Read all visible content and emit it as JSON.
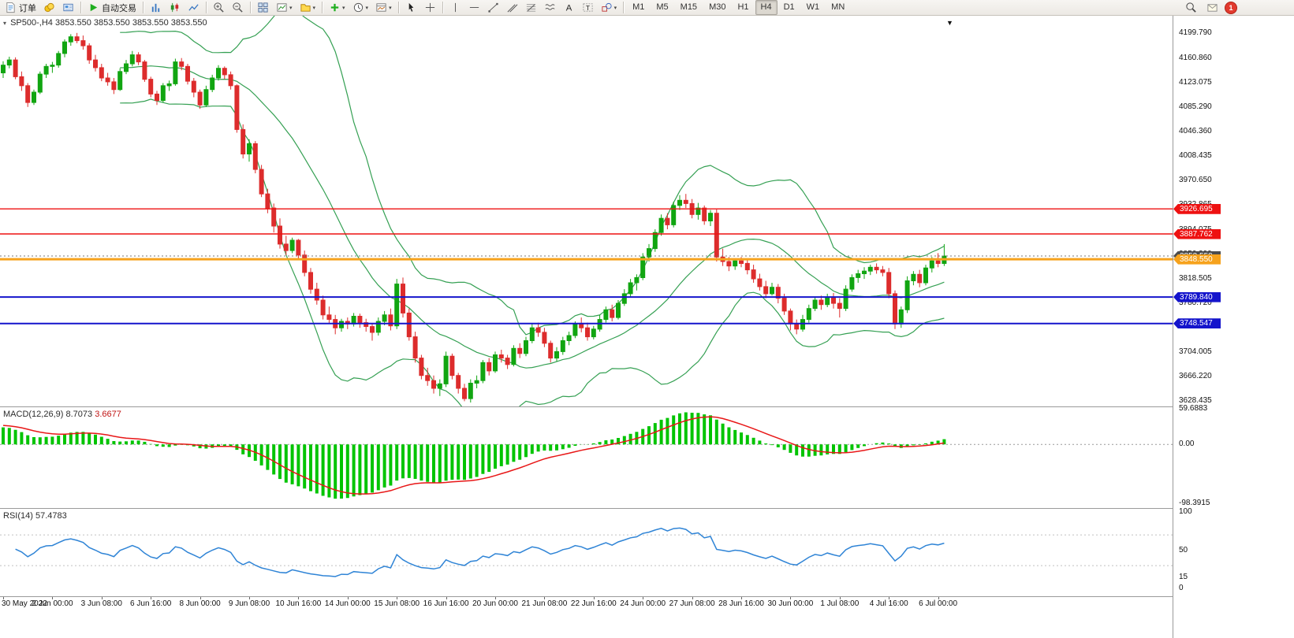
{
  "toolbar": {
    "new_order_label": "订单",
    "auto_trading_label": "自动交易",
    "timeframes": [
      "M1",
      "M5",
      "M15",
      "M30",
      "H1",
      "H4",
      "D1",
      "W1",
      "MN"
    ],
    "active_timeframe": "H4",
    "notification_count": "1"
  },
  "chart_data": {
    "type": "candlestick",
    "symbol_timeframe": "SP500-,H4",
    "ohlc_readout": "3853.550 3853.550 3853.550 3853.550",
    "candle_spacing": 7.8,
    "colors": {
      "up": "#11a511",
      "down": "#dd2c2c",
      "bollinger": "#35a053",
      "macd_hist": "#00c400",
      "macd_signal": "#e81717",
      "rsi": "#2f84d6"
    },
    "y_axis": {
      "top_price": 4226.65,
      "bottom_price": 3619.9,
      "labels": [
        "4199.790",
        "4160.860",
        "4123.075",
        "4085.290",
        "4046.360",
        "4008.435",
        "3970.650",
        "3932.865",
        "3894.075",
        "3856.290",
        "3818.505",
        "3780.720",
        "3742.935",
        "3704.005",
        "3666.220",
        "3628.435"
      ]
    },
    "hlines": [
      {
        "price": 3926.695,
        "label": "3926.695",
        "color": "#ee1111",
        "width": 1.4
      },
      {
        "price": 3887.762,
        "label": "3887.762",
        "color": "#ee1111",
        "width": 1.4
      },
      {
        "price": 3848.55,
        "label": "3848.550",
        "color": "#f6a21c",
        "width": 3
      },
      {
        "price": 3789.84,
        "label": "3789.840",
        "color": "#1414cc",
        "width": 2
      },
      {
        "price": 3748.547,
        "label": "3748.547",
        "color": "#1414cc",
        "width": 2
      }
    ],
    "current_price": {
      "price": 3853.55,
      "label": "3853.550",
      "color": "#4d4d4d"
    },
    "x_labels": [
      {
        "i": 0,
        "t": "30 May 2022"
      },
      {
        "i": 8,
        "t": "2 Jun 00:00"
      },
      {
        "i": 16,
        "t": "3 Jun 08:00"
      },
      {
        "i": 24,
        "t": "6 Jun 16:00"
      },
      {
        "i": 32,
        "t": "8 Jun 00:00"
      },
      {
        "i": 40,
        "t": "9 Jun 08:00"
      },
      {
        "i": 48,
        "t": "10 Jun 16:00"
      },
      {
        "i": 56,
        "t": "14 Jun 00:00"
      },
      {
        "i": 64,
        "t": "15 Jun 08:00"
      },
      {
        "i": 72,
        "t": "16 Jun 16:00"
      },
      {
        "i": 80,
        "t": "20 Jun 00:00"
      },
      {
        "i": 88,
        "t": "21 Jun 08:00"
      },
      {
        "i": 96,
        "t": "22 Jun 16:00"
      },
      {
        "i": 104,
        "t": "24 Jun 00:00"
      },
      {
        "i": 112,
        "t": "27 Jun 08:00"
      },
      {
        "i": 120,
        "t": "28 Jun 16:00"
      },
      {
        "i": 128,
        "t": "30 Jun 00:00"
      },
      {
        "i": 136,
        "t": "1 Jul 08:00"
      },
      {
        "i": 144,
        "t": "4 Jul 16:00"
      },
      {
        "i": 152,
        "t": "6 Jul 00:00"
      }
    ],
    "indicators": {
      "bollinger": {
        "period": 20,
        "deviation": 2
      },
      "macd": {
        "label": "MACD(12,26,9)",
        "value_main": "8.7073",
        "value_signal": "3.6677",
        "axis_labels": [
          "59.6883",
          "0.00",
          "-98.3915"
        ],
        "scale_max": 62,
        "scale_min": -106
      },
      "rsi": {
        "label": "RSI(14)",
        "value": "57.4783",
        "axis_labels": [
          "100",
          "50",
          "15",
          "0"
        ],
        "levels": [
          70,
          30
        ],
        "scale_max": 104,
        "scale_min": -10
      }
    },
    "candles": [
      [
        4138,
        4156,
        4130,
        4150
      ],
      [
        4150,
        4163,
        4145,
        4158
      ],
      [
        4158,
        4162,
        4128,
        4132
      ],
      [
        4132,
        4140,
        4110,
        4118
      ],
      [
        4118,
        4122,
        4085,
        4092
      ],
      [
        4092,
        4112,
        4088,
        4108
      ],
      [
        4108,
        4140,
        4105,
        4136
      ],
      [
        4136,
        4152,
        4130,
        4148
      ],
      [
        4148,
        4155,
        4138,
        4150
      ],
      [
        4150,
        4172,
        4146,
        4168
      ],
      [
        4168,
        4190,
        4162,
        4186
      ],
      [
        4186,
        4198,
        4180,
        4194
      ],
      [
        4194,
        4200,
        4184,
        4188
      ],
      [
        4188,
        4196,
        4174,
        4180
      ],
      [
        4180,
        4184,
        4152,
        4158
      ],
      [
        4158,
        4166,
        4140,
        4146
      ],
      [
        4146,
        4152,
        4125,
        4130
      ],
      [
        4130,
        4138,
        4118,
        4124
      ],
      [
        4124,
        4130,
        4105,
        4112
      ],
      [
        4112,
        4145,
        4110,
        4140
      ],
      [
        4140,
        4158,
        4136,
        4152
      ],
      [
        4152,
        4172,
        4148,
        4166
      ],
      [
        4166,
        4170,
        4150,
        4155
      ],
      [
        4155,
        4158,
        4124,
        4128
      ],
      [
        4128,
        4132,
        4100,
        4105
      ],
      [
        4105,
        4110,
        4088,
        4095
      ],
      [
        4095,
        4122,
        4092,
        4118
      ],
      [
        4118,
        4126,
        4110,
        4121
      ],
      [
        4121,
        4160,
        4118,
        4155
      ],
      [
        4155,
        4161,
        4142,
        4148
      ],
      [
        4148,
        4152,
        4120,
        4125
      ],
      [
        4125,
        4130,
        4100,
        4108
      ],
      [
        4108,
        4112,
        4082,
        4088
      ],
      [
        4088,
        4118,
        4085,
        4112
      ],
      [
        4112,
        4135,
        4108,
        4130
      ],
      [
        4130,
        4150,
        4126,
        4145
      ],
      [
        4145,
        4148,
        4128,
        4135
      ],
      [
        4135,
        4140,
        4112,
        4118
      ],
      [
        4118,
        4120,
        4045,
        4050
      ],
      [
        4050,
        4058,
        4005,
        4012
      ],
      [
        4012,
        4035,
        4000,
        4028
      ],
      [
        4028,
        4032,
        3982,
        3988
      ],
      [
        3988,
        3995,
        3945,
        3950
      ],
      [
        3950,
        3958,
        3920,
        3928
      ],
      [
        3928,
        3935,
        3890,
        3900
      ],
      [
        3900,
        3912,
        3865,
        3872
      ],
      [
        3872,
        3885,
        3855,
        3862
      ],
      [
        3862,
        3882,
        3858,
        3878
      ],
      [
        3878,
        3880,
        3848,
        3855
      ],
      [
        3855,
        3862,
        3822,
        3828
      ],
      [
        3828,
        3835,
        3795,
        3802
      ],
      [
        3802,
        3812,
        3778,
        3785
      ],
      [
        3785,
        3792,
        3755,
        3762
      ],
      [
        3762,
        3775,
        3748,
        3755
      ],
      [
        3755,
        3762,
        3732,
        3742
      ],
      [
        3742,
        3756,
        3736,
        3752
      ],
      [
        3752,
        3758,
        3740,
        3748
      ],
      [
        3748,
        3765,
        3744,
        3760
      ],
      [
        3760,
        3764,
        3742,
        3750
      ],
      [
        3750,
        3756,
        3736,
        3744
      ],
      [
        3744,
        3748,
        3722,
        3735
      ],
      [
        3735,
        3758,
        3730,
        3752
      ],
      [
        3752,
        3768,
        3746,
        3762
      ],
      [
        3762,
        3772,
        3738,
        3745
      ],
      [
        3745,
        3818,
        3740,
        3810
      ],
      [
        3810,
        3820,
        3758,
        3765
      ],
      [
        3765,
        3772,
        3722,
        3728
      ],
      [
        3728,
        3736,
        3688,
        3695
      ],
      [
        3695,
        3700,
        3662,
        3668
      ],
      [
        3668,
        3680,
        3652,
        3660
      ],
      [
        3660,
        3668,
        3640,
        3648
      ],
      [
        3648,
        3662,
        3636,
        3655
      ],
      [
        3655,
        3705,
        3650,
        3698
      ],
      [
        3698,
        3702,
        3662,
        3668
      ],
      [
        3668,
        3672,
        3640,
        3648
      ],
      [
        3648,
        3655,
        3628,
        3632
      ],
      [
        3632,
        3662,
        3626,
        3656
      ],
      [
        3656,
        3668,
        3648,
        3660
      ],
      [
        3660,
        3692,
        3656,
        3688
      ],
      [
        3688,
        3695,
        3668,
        3675
      ],
      [
        3675,
        3705,
        3672,
        3700
      ],
      [
        3700,
        3708,
        3688,
        3695
      ],
      [
        3695,
        3700,
        3678,
        3685
      ],
      [
        3685,
        3715,
        3682,
        3710
      ],
      [
        3710,
        3718,
        3695,
        3702
      ],
      [
        3702,
        3728,
        3698,
        3722
      ],
      [
        3722,
        3748,
        3718,
        3742
      ],
      [
        3742,
        3750,
        3728,
        3735
      ],
      [
        3735,
        3742,
        3712,
        3718
      ],
      [
        3718,
        3722,
        3688,
        3695
      ],
      [
        3695,
        3712,
        3690,
        3705
      ],
      [
        3705,
        3728,
        3700,
        3722
      ],
      [
        3722,
        3736,
        3715,
        3730
      ],
      [
        3730,
        3752,
        3726,
        3748
      ],
      [
        3748,
        3758,
        3735,
        3742
      ],
      [
        3742,
        3750,
        3722,
        3728
      ],
      [
        3728,
        3745,
        3724,
        3740
      ],
      [
        3740,
        3762,
        3736,
        3755
      ],
      [
        3755,
        3775,
        3750,
        3770
      ],
      [
        3770,
        3778,
        3752,
        3758
      ],
      [
        3758,
        3785,
        3755,
        3780
      ],
      [
        3780,
        3802,
        3776,
        3795
      ],
      [
        3795,
        3818,
        3790,
        3812
      ],
      [
        3812,
        3825,
        3800,
        3820
      ],
      [
        3820,
        3858,
        3816,
        3852
      ],
      [
        3852,
        3872,
        3845,
        3865
      ],
      [
        3865,
        3895,
        3860,
        3890
      ],
      [
        3890,
        3918,
        3885,
        3912
      ],
      [
        3912,
        3920,
        3895,
        3902
      ],
      [
        3902,
        3938,
        3898,
        3932
      ],
      [
        3932,
        3948,
        3925,
        3940
      ],
      [
        3940,
        3950,
        3928,
        3935
      ],
      [
        3935,
        3942,
        3912,
        3918
      ],
      [
        3918,
        3936,
        3910,
        3928
      ],
      [
        3928,
        3932,
        3902,
        3908
      ],
      [
        3908,
        3925,
        3900,
        3920
      ],
      [
        3920,
        3926,
        3845,
        3852
      ],
      [
        3852,
        3865,
        3838,
        3845
      ],
      [
        3845,
        3852,
        3830,
        3838
      ],
      [
        3838,
        3850,
        3832,
        3846
      ],
      [
        3846,
        3852,
        3836,
        3842
      ],
      [
        3842,
        3848,
        3825,
        3832
      ],
      [
        3832,
        3840,
        3812,
        3818
      ],
      [
        3818,
        3826,
        3800,
        3806
      ],
      [
        3806,
        3815,
        3788,
        3795
      ],
      [
        3795,
        3812,
        3792,
        3805
      ],
      [
        3805,
        3810,
        3780,
        3788
      ],
      [
        3788,
        3795,
        3762,
        3768
      ],
      [
        3768,
        3772,
        3738,
        3748
      ],
      [
        3748,
        3755,
        3732,
        3740
      ],
      [
        3740,
        3762,
        3736,
        3755
      ],
      [
        3755,
        3778,
        3750,
        3772
      ],
      [
        3772,
        3790,
        3768,
        3785
      ],
      [
        3785,
        3792,
        3770,
        3778
      ],
      [
        3778,
        3795,
        3774,
        3790
      ],
      [
        3790,
        3796,
        3772,
        3780
      ],
      [
        3780,
        3788,
        3758,
        3772
      ],
      [
        3772,
        3808,
        3768,
        3802
      ],
      [
        3802,
        3825,
        3798,
        3820
      ],
      [
        3820,
        3832,
        3812,
        3826
      ],
      [
        3826,
        3836,
        3818,
        3830
      ],
      [
        3830,
        3840,
        3824,
        3836
      ],
      [
        3836,
        3842,
        3826,
        3832
      ],
      [
        3832,
        3838,
        3822,
        3828
      ],
      [
        3828,
        3835,
        3788,
        3795
      ],
      [
        3795,
        3800,
        3740,
        3748
      ],
      [
        3748,
        3775,
        3742,
        3770
      ],
      [
        3770,
        3822,
        3765,
        3815
      ],
      [
        3815,
        3830,
        3808,
        3825
      ],
      [
        3825,
        3832,
        3805,
        3812
      ],
      [
        3812,
        3840,
        3808,
        3835
      ],
      [
        3835,
        3852,
        3828,
        3846
      ],
      [
        3846,
        3858,
        3836,
        3842
      ],
      [
        3842,
        3872,
        3838,
        3853.6
      ]
    ]
  }
}
